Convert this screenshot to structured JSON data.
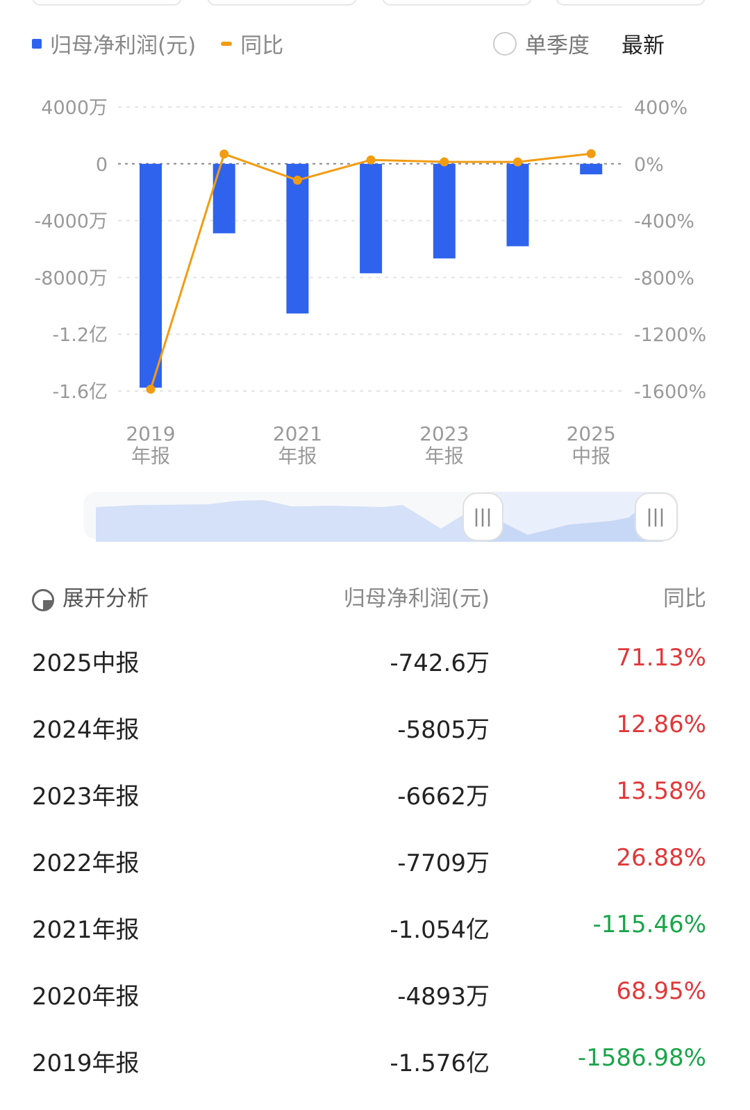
{
  "legend": {
    "bar_label": "归母净利润(元)",
    "line_label": "同比",
    "single_quarter": "单季度",
    "latest": "最新"
  },
  "colors": {
    "bar": "#2f63ee",
    "line": "#f29c11",
    "positive": "#e0383a",
    "negative": "#1aa54a"
  },
  "chart_data": {
    "type": "bar+line",
    "categories": [
      "2019年报",
      "2020年报",
      "2021年报",
      "2022年报",
      "2023年报",
      "2024年报",
      "2025中报"
    ],
    "x_tick_labels": [
      [
        "2019",
        "年报"
      ],
      [
        "2021",
        "年报"
      ],
      [
        "2023",
        "年报"
      ],
      [
        "2025",
        "中报"
      ]
    ],
    "series": [
      {
        "name": "归母净利润(元)",
        "type": "bar",
        "axis": "left",
        "unit": "万",
        "values": [
          -15760,
          -4893,
          -10540,
          -7709,
          -6662,
          -5805,
          -742.6
        ]
      },
      {
        "name": "同比",
        "type": "line",
        "axis": "right",
        "unit": "%",
        "values": [
          -1586.98,
          68.95,
          -115.46,
          26.88,
          13.58,
          12.86,
          71.13
        ]
      }
    ],
    "left_axis": {
      "ylim": [
        -16000,
        4000
      ],
      "ticks": [
        4000,
        0,
        -4000,
        -8000,
        -12000,
        -16000
      ],
      "tick_labels": [
        "4000万",
        "0",
        "-4000万",
        "-8000万",
        "-1.2亿",
        "-1.6亿"
      ]
    },
    "right_axis": {
      "ylim": [
        -1600,
        400
      ],
      "ticks": [
        400,
        0,
        -400,
        -800,
        -1200,
        -1600
      ],
      "tick_labels": [
        "400%",
        "0%",
        "-400%",
        "-800%",
        "-1200%",
        "-1600%"
      ]
    },
    "grid": true
  },
  "table": {
    "expand_label": "展开分析",
    "col_value": "归母净利润(元)",
    "col_yoy": "同比",
    "rows": [
      {
        "period": "2025中报",
        "value": "-742.6万",
        "yoy": "71.13%",
        "dir": "pos"
      },
      {
        "period": "2024年报",
        "value": "-5805万",
        "yoy": "12.86%",
        "dir": "pos"
      },
      {
        "period": "2023年报",
        "value": "-6662万",
        "yoy": "13.58%",
        "dir": "pos"
      },
      {
        "period": "2022年报",
        "value": "-7709万",
        "yoy": "26.88%",
        "dir": "pos"
      },
      {
        "period": "2021年报",
        "value": "-1.054亿",
        "yoy": "-115.46%",
        "dir": "neg"
      },
      {
        "period": "2020年报",
        "value": "-4893万",
        "yoy": "68.95%",
        "dir": "pos"
      },
      {
        "period": "2019年报",
        "value": "-1.576亿",
        "yoy": "-1586.98%",
        "dir": "neg"
      }
    ]
  }
}
